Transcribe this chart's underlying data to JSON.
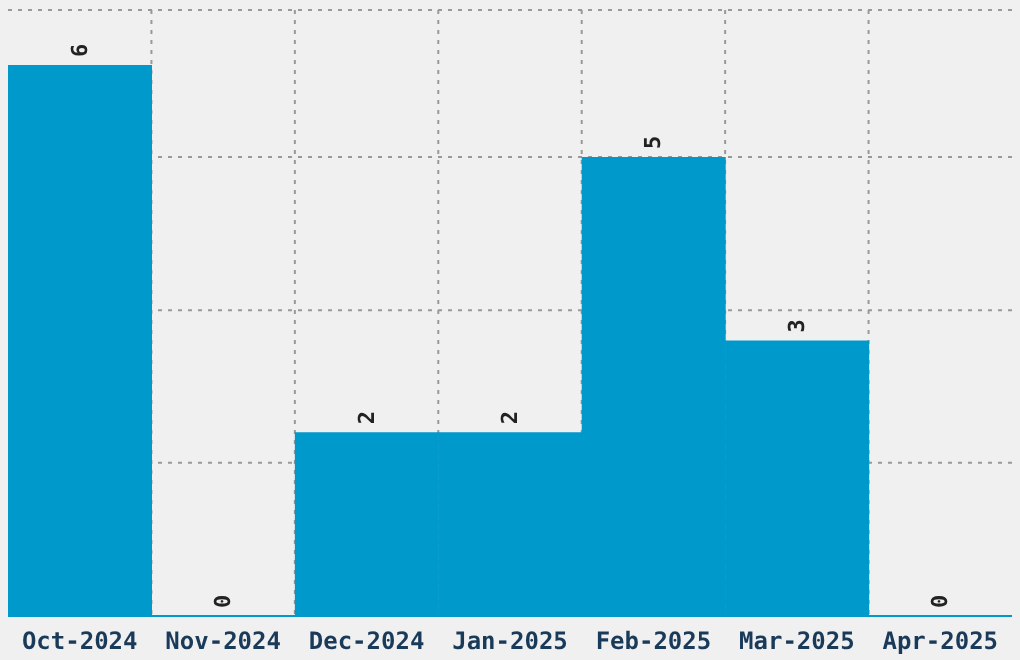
{
  "chart_data": {
    "type": "bar",
    "categories": [
      "Oct-2024",
      "Nov-2024",
      "Dec-2024",
      "Jan-2025",
      "Feb-2025",
      "Mar-2025",
      "Apr-2025"
    ],
    "values": [
      6,
      0,
      2,
      2,
      5,
      3,
      0
    ],
    "color": "#0099cc",
    "ylim": [
      0,
      6.6
    ],
    "yticks": [
      {
        "value": 1.67,
        "label": null
      },
      {
        "value": 3.33,
        "label": null
      },
      {
        "value": 5,
        "label": null
      }
    ],
    "tick_labels": "x",
    "grid": true,
    "data_labels": true
  }
}
